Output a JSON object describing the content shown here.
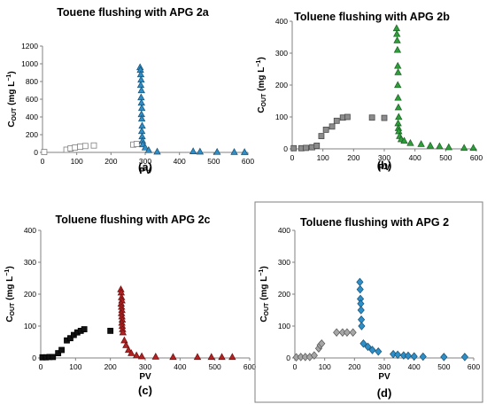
{
  "chart_data": [
    {
      "type": "scatter",
      "title": "Touene flushing with APG 2a",
      "panel_label": "(a)",
      "ylabel_main": "C",
      "ylabel_sub": "OUT",
      "ylabel_unit": " (mg L",
      "ylabel_exp": "−1",
      "ylabel_close": ")",
      "xlabel": "PV",
      "xlim": [
        0,
        600
      ],
      "ylim": [
        0,
        1200
      ],
      "xticks": [
        "0",
        "100",
        "200",
        "300",
        "400",
        "500",
        "600"
      ],
      "yticks": [
        "0",
        "200",
        "400",
        "600",
        "800",
        "1000",
        "1200"
      ],
      "grid": false,
      "series": [
        {
          "marker": "square",
          "fill": "#ffffff",
          "stroke": "#7f7f7f",
          "points": [
            [
              5,
              4
            ],
            [
              70,
              30
            ],
            [
              82,
              45
            ],
            [
              95,
              55
            ],
            [
              110,
              65
            ],
            [
              125,
              72
            ],
            [
              150,
              78
            ],
            [
              265,
              88
            ],
            [
              275,
              95
            ]
          ]
        },
        {
          "marker": "triangle",
          "fill": "#2e8fc8",
          "stroke": "#174f73",
          "points": [
            [
              285,
              960
            ],
            [
              286,
              930
            ],
            [
              287,
              880
            ],
            [
              288,
              820
            ],
            [
              287,
              760
            ],
            [
              289,
              700
            ],
            [
              288,
              620
            ],
            [
              289,
              560
            ],
            [
              290,
              500
            ],
            [
              289,
              430
            ],
            [
              290,
              380
            ],
            [
              291,
              300
            ],
            [
              290,
              240
            ],
            [
              291,
              180
            ],
            [
              292,
              130
            ],
            [
              293,
              90
            ],
            [
              300,
              55
            ],
            [
              310,
              25
            ],
            [
              335,
              8
            ],
            [
              440,
              12
            ],
            [
              460,
              8
            ],
            [
              510,
              5
            ],
            [
              560,
              4
            ],
            [
              590,
              3
            ]
          ]
        }
      ]
    },
    {
      "type": "scatter",
      "title": "Toluene flushing with APG 2b",
      "panel_label": "(b)",
      "ylabel_main": "C",
      "ylabel_sub": "OUT",
      "ylabel_unit": " (mg L",
      "ylabel_exp": "−1",
      "ylabel_close": ")",
      "xlabel": "PV",
      "xlim": [
        0,
        600
      ],
      "ylim": [
        0,
        400
      ],
      "xticks": [
        "0",
        "100",
        "200",
        "300",
        "400",
        "500",
        "600"
      ],
      "yticks": [
        "0",
        "100",
        "200",
        "300",
        "400"
      ],
      "grid": false,
      "series": [
        {
          "marker": "square",
          "fill": "#8c8c8c",
          "stroke": "#4a4a4a",
          "points": [
            [
              5,
              2
            ],
            [
              30,
              2
            ],
            [
              45,
              3
            ],
            [
              65,
              5
            ],
            [
              80,
              10
            ],
            [
              95,
              40
            ],
            [
              110,
              60
            ],
            [
              130,
              70
            ],
            [
              145,
              88
            ],
            [
              165,
              98
            ],
            [
              180,
              100
            ],
            [
              260,
              98
            ],
            [
              300,
              97
            ]
          ]
        },
        {
          "marker": "triangle",
          "fill": "#2e9e3a",
          "stroke": "#1a5f22",
          "points": [
            [
              340,
              378
            ],
            [
              341,
              360
            ],
            [
              342,
              340
            ],
            [
              343,
              310
            ],
            [
              344,
              260
            ],
            [
              345,
              240
            ],
            [
              344,
              200
            ],
            [
              345,
              160
            ],
            [
              346,
              130
            ],
            [
              347,
              100
            ],
            [
              345,
              80
            ],
            [
              346,
              65
            ],
            [
              347,
              55
            ],
            [
              350,
              40
            ],
            [
              355,
              30
            ],
            [
              365,
              25
            ],
            [
              385,
              18
            ],
            [
              420,
              15
            ],
            [
              450,
              10
            ],
            [
              480,
              8
            ],
            [
              510,
              5
            ],
            [
              560,
              3
            ],
            [
              590,
              3
            ]
          ]
        }
      ]
    },
    {
      "type": "scatter",
      "title": "Toluene flushing with APG 2c",
      "panel_label": "(c)",
      "ylabel_main": "C",
      "ylabel_sub": "OUT",
      "ylabel_unit": " (mg L",
      "ylabel_exp": "−1",
      "ylabel_close": ")",
      "xlabel": "PV",
      "xlim": [
        0,
        600
      ],
      "ylim": [
        0,
        400
      ],
      "xticks": [
        "0",
        "100",
        "200",
        "300",
        "400",
        "500",
        "600"
      ],
      "yticks": [
        "0",
        "100",
        "200",
        "300",
        "400"
      ],
      "grid": false,
      "series": [
        {
          "marker": "square",
          "fill": "#111111",
          "stroke": "#000000",
          "points": [
            [
              5,
              2
            ],
            [
              15,
              2
            ],
            [
              25,
              3
            ],
            [
              35,
              3
            ],
            [
              50,
              15
            ],
            [
              60,
              25
            ],
            [
              75,
              55
            ],
            [
              85,
              62
            ],
            [
              95,
              72
            ],
            [
              105,
              80
            ],
            [
              115,
              85
            ],
            [
              125,
              90
            ],
            [
              200,
              85
            ]
          ]
        },
        {
          "marker": "triangle",
          "fill": "#b22222",
          "stroke": "#6b1010",
          "points": [
            [
              230,
              215
            ],
            [
              231,
              205
            ],
            [
              232,
              190
            ],
            [
              233,
              180
            ],
            [
              231,
              170
            ],
            [
              232,
              160
            ],
            [
              233,
              150
            ],
            [
              232,
              140
            ],
            [
              233,
              130
            ],
            [
              234,
              120
            ],
            [
              233,
              110
            ],
            [
              234,
              100
            ],
            [
              235,
              90
            ],
            [
              236,
              80
            ],
            [
              240,
              55
            ],
            [
              245,
              40
            ],
            [
              252,
              25
            ],
            [
              260,
              15
            ],
            [
              275,
              8
            ],
            [
              290,
              5
            ],
            [
              330,
              4
            ],
            [
              380,
              3
            ],
            [
              450,
              3
            ],
            [
              490,
              3
            ],
            [
              520,
              3
            ],
            [
              550,
              3
            ]
          ]
        }
      ]
    },
    {
      "type": "scatter",
      "title": "Toluene flushing with APG 2",
      "panel_label": "(d)",
      "ylabel_main": "C",
      "ylabel_sub": "OUT",
      "ylabel_unit": " (mg L",
      "ylabel_exp": "−1",
      "ylabel_close": ")",
      "xlabel": "PV",
      "xlim": [
        0,
        600
      ],
      "ylim": [
        0,
        400
      ],
      "xticks": [
        "0",
        "100",
        "200",
        "300",
        "400",
        "500",
        "600"
      ],
      "yticks": [
        "0",
        "100",
        "200",
        "300",
        "400"
      ],
      "grid": false,
      "series": [
        {
          "marker": "diamond",
          "fill": "#a6a6a6",
          "stroke": "#555555",
          "points": [
            [
              5,
              2
            ],
            [
              20,
              3
            ],
            [
              35,
              3
            ],
            [
              50,
              3
            ],
            [
              65,
              8
            ],
            [
              80,
              30
            ],
            [
              85,
              40
            ],
            [
              90,
              45
            ],
            [
              140,
              80
            ],
            [
              160,
              80
            ],
            [
              175,
              80
            ],
            [
              195,
              80
            ]
          ]
        },
        {
          "marker": "diamond",
          "fill": "#2e8fc8",
          "stroke": "#174f73",
          "points": [
            [
              218,
              238
            ],
            [
              219,
              215
            ],
            [
              220,
              185
            ],
            [
              221,
              170
            ],
            [
              222,
              150
            ],
            [
              223,
              120
            ],
            [
              224,
              100
            ],
            [
              230,
              45
            ],
            [
              245,
              35
            ],
            [
              260,
              25
            ],
            [
              280,
              20
            ],
            [
              330,
              12
            ],
            [
              345,
              10
            ],
            [
              365,
              8
            ],
            [
              380,
              7
            ],
            [
              400,
              5
            ],
            [
              430,
              4
            ],
            [
              500,
              3
            ],
            [
              570,
              3
            ]
          ]
        }
      ]
    }
  ]
}
